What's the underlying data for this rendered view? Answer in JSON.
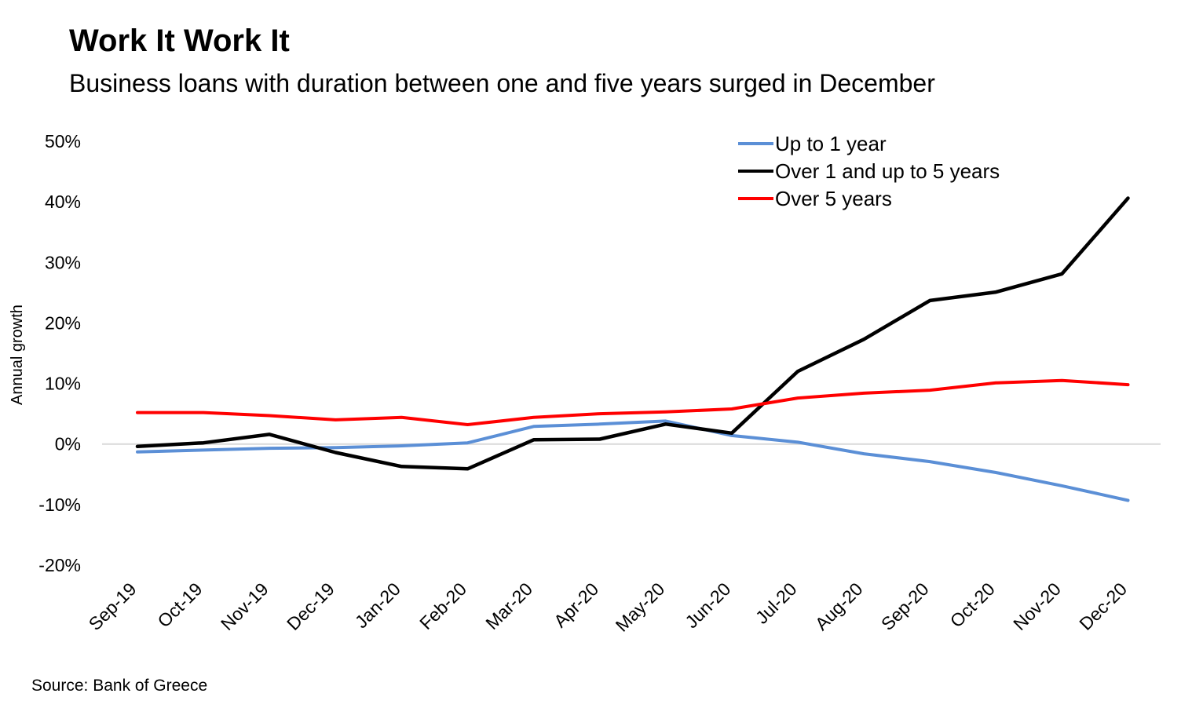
{
  "title": "Work It Work It",
  "subtitle": "Business loans with duration between one and five years surged in December",
  "source": "Source: Bank of Greece",
  "chart_data": {
    "type": "line",
    "ylabel": "Annual growth",
    "xlabel": "",
    "ylim": [
      -20,
      50
    ],
    "yticks": [
      50,
      40,
      30,
      20,
      10,
      0,
      -10,
      -20
    ],
    "ytick_labels": [
      "50%",
      "40%",
      "30%",
      "20%",
      "10%",
      "0%",
      "-10%",
      "-20%"
    ],
    "grid": "zero line only",
    "legend_position": "top-right",
    "categories": [
      "Sep-19",
      "Oct-19",
      "Nov-19",
      "Dec-19",
      "Jan-20",
      "Feb-20",
      "Mar-20",
      "Apr-20",
      "May-20",
      "Jun-20",
      "Jul-20",
      "Aug-20",
      "Sep-20",
      "Oct-20",
      "Nov-20",
      "Dec-20"
    ],
    "series": [
      {
        "name": "Up to 1 year",
        "color": "#5b8fd6",
        "values": [
          -1.3,
          -1.0,
          -0.7,
          -0.6,
          -0.3,
          0.2,
          2.9,
          3.3,
          3.8,
          1.4,
          0.3,
          -1.6,
          -2.9,
          -4.7,
          -6.9,
          -9.3
        ]
      },
      {
        "name": "Over 1 and up to 5 years",
        "color": "#000000",
        "values": [
          -0.4,
          0.2,
          1.6,
          -1.4,
          -3.7,
          -4.1,
          0.7,
          0.8,
          3.3,
          1.8,
          12.0,
          17.3,
          23.7,
          25.1,
          28.1,
          40.6
        ]
      },
      {
        "name": "Over 5 years",
        "color": "#ff0000",
        "values": [
          5.2,
          5.2,
          4.7,
          4.0,
          4.4,
          3.2,
          4.4,
          5.0,
          5.3,
          5.8,
          7.6,
          8.4,
          8.9,
          10.1,
          10.5,
          9.8
        ]
      }
    ]
  }
}
